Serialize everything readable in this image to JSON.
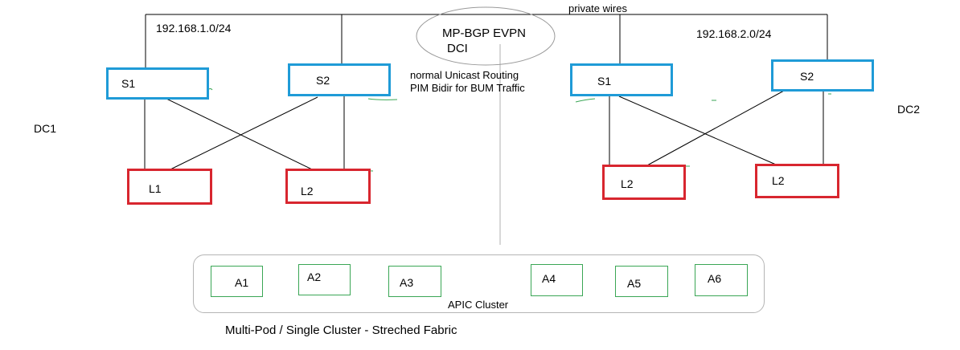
{
  "top": {
    "private_wires": "private wires",
    "dci_line1": "MP-BGP EVPN",
    "dci_line2": "DCI",
    "note_line1": "normal Unicast Routing",
    "note_line2": "PIM Bidir for BUM Traffic"
  },
  "dc1": {
    "label": "DC1",
    "subnet": "192.168.1.0/24",
    "spines": [
      "S1",
      "S2"
    ],
    "leaves": [
      "L1",
      "L2"
    ]
  },
  "dc2": {
    "label": "DC2",
    "subnet": "192.168.2.0/24",
    "spines": [
      "S1",
      "S2"
    ],
    "leaves": [
      "L2",
      "L2"
    ]
  },
  "apic": {
    "label": "APIC Cluster",
    "nodes": [
      "A1",
      "A2",
      "A3",
      "A4",
      "A5",
      "A6"
    ]
  },
  "caption": "Multi-Pod / Single Cluster - Streched Fabric",
  "colors": {
    "spine": "#1f9bd7",
    "leaf": "#d8262f",
    "apic": "#3aa655",
    "line": "#000000"
  }
}
